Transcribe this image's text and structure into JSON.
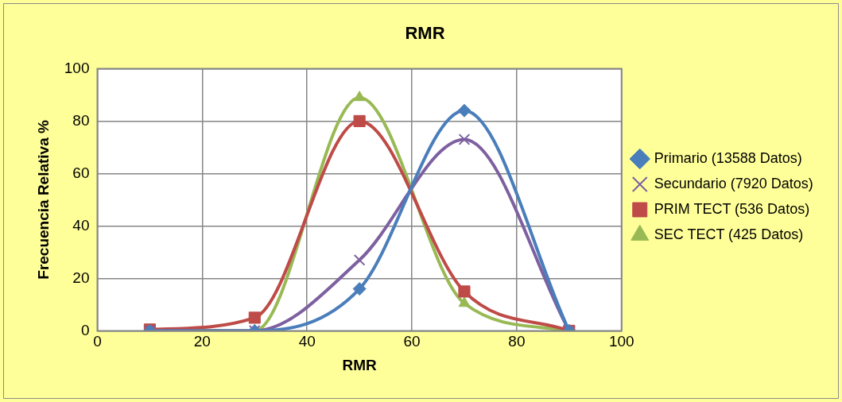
{
  "chart_data": {
    "type": "line",
    "title": "RMR",
    "xlabel": "RMR",
    "ylabel": "Frecuencia Relativa %",
    "x": [
      10,
      30,
      50,
      70,
      90
    ],
    "series": [
      {
        "name": "Primario (13588 Datos)",
        "color": "#4a7ebb",
        "marker": "diamond",
        "values": [
          0,
          0,
          16,
          84,
          0
        ]
      },
      {
        "name": "Secundario (7920 Datos)",
        "color": "#7d60a0",
        "marker": "cross",
        "values": [
          0,
          0,
          27,
          73,
          0
        ]
      },
      {
        "name": "PRIM TECT (536 Datos)",
        "color": "#be4b48",
        "marker": "square",
        "values": [
          0.5,
          5,
          80,
          15,
          0
        ]
      },
      {
        "name": "SEC TECT (425 Datos)",
        "color": "#98b954",
        "marker": "triangle",
        "values": [
          0.3,
          0,
          89,
          10.5,
          0
        ]
      }
    ],
    "xlim": [
      0,
      100
    ],
    "xticks": [
      0,
      20,
      40,
      60,
      80,
      100
    ],
    "ylim": [
      0,
      100
    ],
    "yticks": [
      0,
      20,
      40,
      60,
      80,
      100
    ],
    "grid": true,
    "legend": "right",
    "line_style": "solid"
  }
}
